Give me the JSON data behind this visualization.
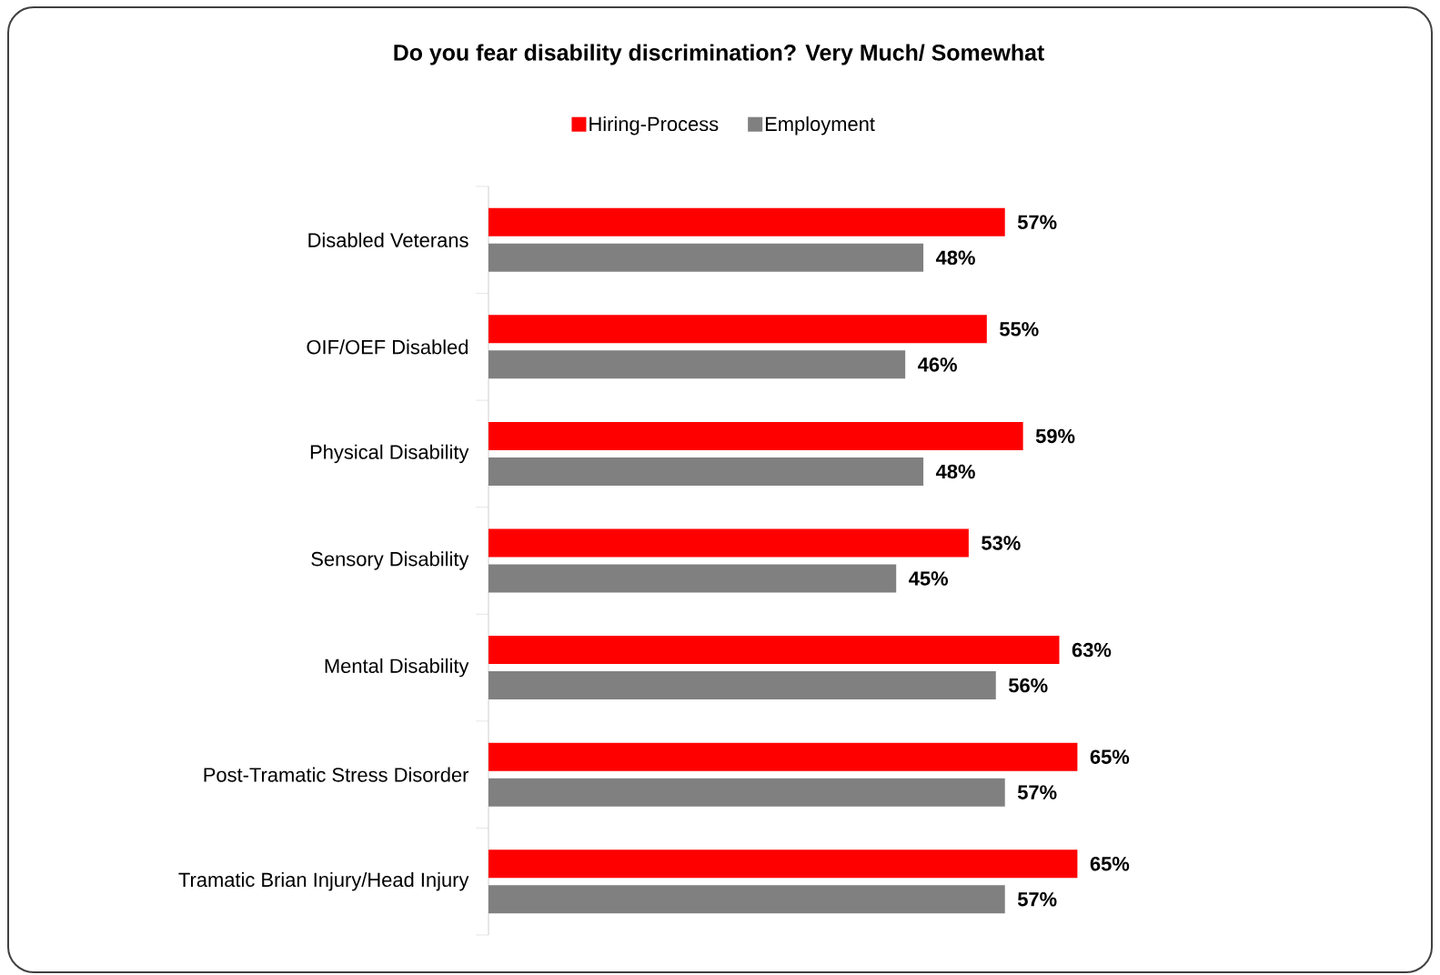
{
  "chart_data": {
    "type": "bar",
    "orientation": "horizontal",
    "title": "Do you fear disability discrimination?  Very Much/ Somewhat",
    "legend": "top",
    "categories": [
      "Disabled Veterans",
      "OIF/OEF Disabled",
      "Physical Disability",
      "Sensory Disability",
      "Mental Disability",
      "Post-Tramatic Stress Disorder",
      "Tramatic Brian Injury/Head Injury"
    ],
    "series": [
      {
        "name": "Hiring-Process",
        "color": "#ff0000",
        "values": [
          57,
          55,
          59,
          53,
          63,
          65,
          65
        ],
        "value_labels": [
          "57%",
          "55%",
          "59%",
          "53%",
          "63%",
          "65%",
          "65%"
        ]
      },
      {
        "name": "Employment",
        "color": "#808080",
        "values": [
          48,
          46,
          48,
          45,
          56,
          57,
          57
        ],
        "value_labels": [
          "48%",
          "46%",
          "48%",
          "45%",
          "56%",
          "57%",
          "57%"
        ]
      }
    ]
  }
}
